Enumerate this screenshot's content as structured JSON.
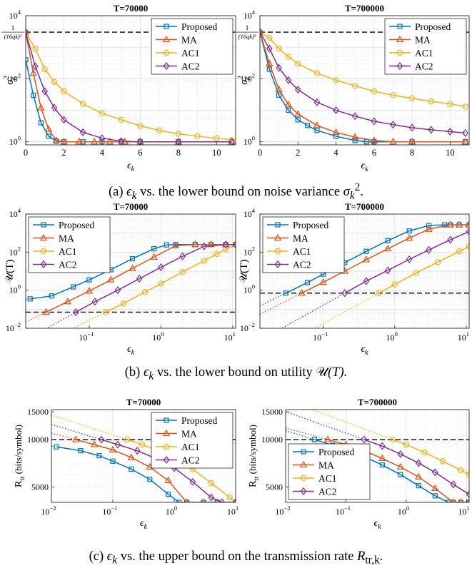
{
  "captions": {
    "a": {
      "pre": "(a) ",
      "sym1": "ϵ",
      "sub1": "k",
      "mid": " vs. the lower bound on noise variance ",
      "sym2": "σ",
      "sub2": "k",
      "sup2": "2",
      "post": "."
    },
    "b": {
      "pre": "(b) ",
      "sym1": "ϵ",
      "sub1": "k",
      "mid": " vs. the lower bound on utility ",
      "sym2": "𝒰",
      "post": "(T)."
    },
    "c": {
      "pre": "(c) ",
      "sym1": "ϵ",
      "sub1": "k",
      "mid": " vs. the upper bound on the transmission rate ",
      "sym2": "R",
      "sub2": "tr,k",
      "post": "."
    }
  },
  "colors": {
    "Proposed": "#0072BD",
    "MA": "#D95319",
    "AC1": "#EDB120",
    "AC2": "#7E2F8E",
    "dash": "#000000"
  },
  "chart_data": [
    {
      "id": "a1",
      "type": "line",
      "title": "T=70000",
      "xlabel": "ϵk",
      "ylabel": "σ²k",
      "yscale": "log",
      "xlim": [
        0,
        11
      ],
      "ylim": [
        0.8,
        10000
      ],
      "xticks": [
        0,
        2,
        4,
        6,
        8,
        10
      ],
      "yticks": [
        "10^0",
        "10^2",
        "10^4"
      ],
      "hline": {
        "value": 3000,
        "label": "1/(16qk)²"
      },
      "legend": "top-right",
      "grid": true,
      "series": [
        {
          "name": "Proposed",
          "marker": "square",
          "x": [
            0,
            0.4,
            0.8,
            1.2,
            1.6,
            2.0,
            3,
            4,
            5,
            6,
            8,
            10.8
          ],
          "y": [
            400,
            30,
            4,
            1.5,
            1.05,
            1,
            1,
            1,
            1,
            1,
            1,
            1
          ]
        },
        {
          "name": "MA",
          "marker": "triangle",
          "x": [
            0,
            0.4,
            0.8,
            1.2,
            1.6,
            2.0,
            2.8,
            3.6,
            4.4,
            5.2,
            6,
            8,
            10.8
          ],
          "y": [
            3000,
            150,
            12,
            2.5,
            1.1,
            1,
            1,
            1,
            1,
            1,
            1,
            1,
            1
          ]
        },
        {
          "name": "AC1",
          "marker": "circle",
          "x": [
            0,
            0.5,
            1,
            1.5,
            2,
            3,
            4,
            5,
            6,
            7,
            8,
            9,
            10,
            10.8
          ],
          "y": [
            3000,
            900,
            200,
            80,
            40,
            16,
            8,
            5,
            3.2,
            2.3,
            1.8,
            1.5,
            1.3,
            1.15
          ]
        },
        {
          "name": "AC2",
          "marker": "diamond",
          "x": [
            0,
            0.5,
            1,
            1.5,
            2,
            3,
            4,
            5,
            6,
            8,
            10.8
          ],
          "y": [
            3000,
            250,
            40,
            12,
            5,
            2,
            1.3,
            1.05,
            1,
            1,
            1
          ]
        }
      ]
    },
    {
      "id": "a2",
      "type": "line",
      "title": "T=700000",
      "xlabel": "ϵk",
      "ylabel": "σ²k",
      "yscale": "log",
      "xlim": [
        0,
        11
      ],
      "ylim": [
        0.8,
        10000
      ],
      "xticks": [
        0,
        2,
        4,
        6,
        8,
        10
      ],
      "yticks": [
        "10^0",
        "10^2",
        "10^4"
      ],
      "hline": {
        "value": 3000,
        "label": "1/(16qk)²"
      },
      "legend": "top-right",
      "grid": true,
      "series": [
        {
          "name": "Proposed",
          "marker": "square",
          "x": [
            0,
            0.5,
            1,
            1.5,
            2,
            2.5,
            3,
            4,
            5,
            5.6,
            6,
            8,
            10.8
          ],
          "y": [
            3000,
            200,
            30,
            10,
            5,
            3.3,
            2.3,
            1.5,
            1.1,
            1,
            1,
            1,
            1
          ]
        },
        {
          "name": "MA",
          "marker": "triangle",
          "x": [
            0,
            0.5,
            1,
            1.5,
            2,
            3,
            4,
            5,
            6,
            7,
            8,
            10.8
          ],
          "y": [
            3000,
            300,
            45,
            15,
            7.5,
            3.3,
            2,
            1.4,
            1.1,
            1,
            1,
            1
          ]
        },
        {
          "name": "AC1",
          "marker": "circle",
          "x": [
            0,
            0.5,
            1,
            1.5,
            2,
            3,
            4,
            5,
            6,
            7,
            8,
            9,
            10,
            10.8
          ],
          "y": [
            3000,
            2000,
            900,
            500,
            300,
            150,
            90,
            60,
            40,
            30,
            24,
            19,
            16,
            13
          ]
        },
        {
          "name": "AC2",
          "marker": "diamond",
          "x": [
            0,
            0.5,
            1,
            1.5,
            2,
            3,
            4,
            5,
            6,
            7,
            8,
            9,
            10,
            10.8
          ],
          "y": [
            3000,
            900,
            220,
            90,
            45,
            18,
            10,
            6.5,
            4.5,
            3.5,
            2.8,
            2.4,
            2.1,
            1.9
          ]
        }
      ]
    },
    {
      "id": "b1",
      "type": "line",
      "title": "T=70000",
      "xlabel": "ϵk",
      "ylabel": "𝒰(T)",
      "xscale": "log",
      "yscale": "log",
      "xlim": [
        0.013,
        11
      ],
      "ylim": [
        0.01,
        10000
      ],
      "xticks": [
        "10^-1",
        "10^0",
        "10^1"
      ],
      "yticks": [
        "10^-2",
        "10^0",
        "10^2",
        "10^4"
      ],
      "hline": {
        "value": 0.07
      },
      "legend": "top-left",
      "grid": true,
      "series": [
        {
          "name": "Proposed",
          "marker": "square",
          "x": [
            0.015,
            0.03,
            0.06,
            0.1,
            0.2,
            0.4,
            0.8,
            1.2,
            1.6,
            3,
            5,
            8,
            11
          ],
          "y": [
            0.35,
            0.5,
            1.5,
            3.5,
            12,
            45,
            150,
            240,
            250,
            250,
            250,
            250,
            250
          ]
        },
        {
          "name": "MA",
          "marker": "triangle",
          "x": [
            0.025,
            0.05,
            0.1,
            0.2,
            0.4,
            0.8,
            1.6,
            3,
            5,
            8,
            11
          ],
          "y": [
            0.07,
            0.25,
            0.9,
            3.5,
            14,
            55,
            220,
            250,
            250,
            250,
            250
          ]
        },
        {
          "name": "AC1",
          "marker": "circle",
          "x": [
            0.17,
            0.3,
            0.6,
            1,
            2,
            4,
            6,
            8,
            11
          ],
          "y": [
            0.07,
            0.2,
            0.8,
            2.2,
            9,
            35,
            80,
            140,
            250
          ]
        },
        {
          "name": "AC2",
          "marker": "diamond",
          "x": [
            0.065,
            0.12,
            0.25,
            0.5,
            1,
            2,
            4,
            8,
            11
          ],
          "y": [
            0.07,
            0.25,
            1,
            4,
            16,
            60,
            200,
            250,
            250
          ]
        }
      ]
    },
    {
      "id": "b2",
      "type": "line",
      "title": "T=700000",
      "xlabel": "ϵk",
      "ylabel": "𝒰(T)",
      "xscale": "log",
      "yscale": "log",
      "xlim": [
        0.013,
        11
      ],
      "ylim": [
        0.01,
        10000
      ],
      "xticks": [
        "10^-1",
        "10^0",
        "10^1"
      ],
      "yticks": [
        "10^-2",
        "10^0",
        "10^2",
        "10^4"
      ],
      "hline": {
        "value": 0.7
      },
      "legend": "top-left",
      "grid": true,
      "series": [
        {
          "name": "Proposed",
          "marker": "square",
          "x": [
            0.03,
            0.06,
            0.1,
            0.2,
            0.4,
            0.8,
            1.6,
            3,
            5,
            6,
            8,
            11
          ],
          "y": [
            0.7,
            2.5,
            7,
            28,
            110,
            400,
            1300,
            2500,
            2700,
            2700,
            2700,
            2700
          ]
        },
        {
          "name": "MA",
          "marker": "triangle",
          "x": [
            0.05,
            0.1,
            0.2,
            0.4,
            0.8,
            1.6,
            3,
            6,
            8,
            11
          ],
          "y": [
            0.7,
            2.6,
            10,
            40,
            150,
            550,
            1600,
            2700,
            2700,
            2700
          ]
        },
        {
          "name": "AC1",
          "marker": "circle",
          "x": [
            0.6,
            1,
            2,
            4,
            8,
            11
          ],
          "y": [
            0.7,
            2,
            8,
            30,
            110,
            200
          ]
        },
        {
          "name": "AC2",
          "marker": "diamond",
          "x": [
            0.2,
            0.4,
            0.8,
            1.6,
            3,
            6,
            11
          ],
          "y": [
            0.7,
            3,
            11,
            42,
            130,
            450,
            1200
          ]
        }
      ]
    },
    {
      "id": "c1",
      "type": "line",
      "title": "T=70000",
      "xlabel": "ϵk",
      "ylabel": "Rtr (bits/symbol)",
      "xscale": "log",
      "yscale": "log",
      "xlim": [
        0.01,
        10
      ],
      "ylim": [
        4000,
        15500
      ],
      "xticks": [
        "10^-2",
        "10^-1",
        "10^0",
        "10^1"
      ],
      "yticks": [
        5000,
        10000,
        15000
      ],
      "hline": {
        "value": 10000
      },
      "legend": "top-right",
      "grid": true,
      "series": [
        {
          "name": "Proposed",
          "marker": "square",
          "x": [
            0.012,
            0.03,
            0.06,
            0.1,
            0.2,
            0.4,
            0.8,
            1.2,
            1.6,
            3,
            5,
            10
          ],
          "y": [
            9000,
            8500,
            7900,
            7300,
            6500,
            5600,
            4500,
            4000,
            4000,
            4000,
            4000,
            4000
          ]
        },
        {
          "name": "MA",
          "marker": "triangle",
          "x": [
            0.025,
            0.05,
            0.1,
            0.2,
            0.4,
            0.8,
            1.6,
            3,
            5,
            10
          ],
          "y": [
            10000,
            9300,
            8600,
            7700,
            6700,
            5500,
            4000,
            4000,
            4000,
            4000
          ]
        },
        {
          "name": "AC1",
          "marker": "circle",
          "x": [
            0.17,
            0.3,
            0.6,
            1,
            2,
            4,
            8,
            10
          ],
          "y": [
            10000,
            9300,
            8400,
            7700,
            6500,
            5300,
            4300,
            4000
          ]
        },
        {
          "name": "AC2",
          "marker": "diamond",
          "x": [
            0.065,
            0.12,
            0.25,
            0.5,
            1,
            2,
            4,
            6,
            10
          ],
          "y": [
            10000,
            9300,
            8500,
            7600,
            6600,
            5400,
            4300,
            4000,
            4000
          ]
        }
      ]
    },
    {
      "id": "c2",
      "type": "line",
      "title": "T=700000",
      "xlabel": "ϵk",
      "ylabel": "Rtr (bits/symbol)",
      "xscale": "log",
      "yscale": "log",
      "xlim": [
        0.01,
        11
      ],
      "ylim": [
        4000,
        15500
      ],
      "xticks": [
        "10^-2",
        "10^-1",
        "10^0",
        "10^1"
      ],
      "yticks": [
        5000,
        10000,
        15000
      ],
      "hline": {
        "value": 10000
      },
      "legend": "bottom-left",
      "grid": true,
      "series": [
        {
          "name": "Proposed",
          "marker": "square",
          "x": [
            0.03,
            0.06,
            0.1,
            0.2,
            0.4,
            0.8,
            1.6,
            3,
            5,
            6,
            8,
            11
          ],
          "y": [
            10000,
            9200,
            8600,
            7800,
            6900,
            6000,
            5100,
            4400,
            4000,
            4000,
            4000,
            4000
          ]
        },
        {
          "name": "MA",
          "marker": "triangle",
          "x": [
            0.05,
            0.1,
            0.2,
            0.4,
            0.8,
            1.6,
            3,
            6,
            8,
            11
          ],
          "y": [
            10000,
            9300,
            8500,
            7600,
            6700,
            5800,
            4900,
            4000,
            4000,
            4000
          ]
        },
        {
          "name": "AC1",
          "marker": "circle",
          "x": [
            0.6,
            1,
            2,
            4,
            8,
            11
          ],
          "y": [
            10000,
            9300,
            8300,
            7300,
            6400,
            6000
          ]
        },
        {
          "name": "AC2",
          "marker": "diamond",
          "x": [
            0.2,
            0.4,
            0.8,
            1.6,
            3,
            6,
            11
          ],
          "y": [
            10000,
            9100,
            8100,
            7100,
            6200,
            5200,
            4500
          ]
        }
      ]
    }
  ]
}
